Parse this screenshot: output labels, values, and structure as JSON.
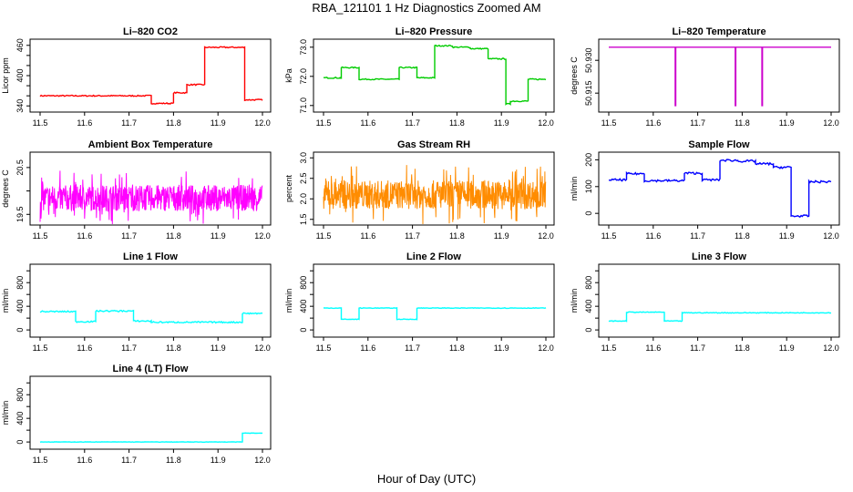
{
  "figure": {
    "title": "RBA_121101  1 Hz Diagnostics Zoomed AM",
    "xlabel": "Hour of Day (UTC)"
  },
  "chart_data": [
    {
      "type": "line",
      "title": "Li–820 CO2",
      "ylabel": "Licor ppm",
      "color": "#ff0000",
      "xlim": [
        11.5,
        12.0
      ],
      "ylim": [
        335,
        465
      ],
      "yticks": [
        340,
        360,
        380,
        400,
        420,
        440,
        460
      ],
      "ytick_labels": [
        "340",
        "",
        "",
        "400",
        "",
        "",
        "460"
      ],
      "series": [
        {
          "segments": [
            [
              11.5,
              11.75,
              360
            ],
            [
              11.75,
              11.8,
              345
            ],
            [
              11.8,
              11.83,
              366
            ],
            [
              11.83,
              11.87,
              382
            ],
            [
              11.87,
              11.96,
              456
            ],
            [
              11.96,
              12.0,
              352
            ]
          ],
          "noise": 1.2
        }
      ]
    },
    {
      "type": "line",
      "title": "Li–820 Pressure",
      "ylabel": "kPa",
      "color": "#00cc00",
      "xlim": [
        11.5,
        12.0
      ],
      "ylim": [
        70.9,
        73.15
      ],
      "yticks": [
        71.0,
        72.0,
        73.0
      ],
      "ytick_labels": [
        "71.0",
        "72.0",
        "73.0"
      ],
      "series": [
        {
          "segments": [
            [
              11.5,
              11.54,
              71.95
            ],
            [
              11.54,
              11.58,
              72.3
            ],
            [
              11.58,
              11.67,
              71.9
            ],
            [
              11.67,
              11.71,
              72.3
            ],
            [
              11.71,
              11.75,
              71.95
            ],
            [
              11.75,
              11.79,
              73.05
            ],
            [
              11.79,
              11.83,
              73.0
            ],
            [
              11.83,
              11.87,
              72.95
            ],
            [
              11.87,
              11.91,
              72.6
            ],
            [
              11.91,
              11.92,
              71.05
            ],
            [
              11.92,
              11.96,
              71.15
            ],
            [
              11.96,
              12.0,
              71.9
            ]
          ],
          "noise": 0.02
        }
      ]
    },
    {
      "type": "line",
      "title": "Li–820 Temperature",
      "ylabel": "degrees C",
      "color": "#cc00cc",
      "xlim": [
        11.5,
        12.0
      ],
      "ylim": [
        50.908,
        50.938
      ],
      "yticks": [
        50.915,
        50.93
      ],
      "ytick_labels": [
        "50.915",
        "50.930"
      ],
      "series": [
        {
          "segments": [
            [
              11.5,
              12.0,
              50.936
            ]
          ],
          "noise": 0,
          "dips": [
            [
              11.65,
              50.909
            ],
            [
              11.785,
              50.909
            ],
            [
              11.845,
              50.909
            ]
          ]
        }
      ]
    },
    {
      "type": "line",
      "title": "Ambient Box Temperature",
      "ylabel": "degrees C",
      "color": "#ff00ff",
      "xlim": [
        11.5,
        12.0
      ],
      "ylim": [
        19.35,
        20.75
      ],
      "yticks": [
        19.5,
        20.0,
        20.5
      ],
      "ytick_labels": [
        "19.5",
        "",
        "20.5"
      ],
      "series": [
        {
          "segments": [
            [
              11.5,
              12.0,
              19.85
            ]
          ],
          "noise": 0.28,
          "dense": true
        }
      ]
    },
    {
      "type": "line",
      "title": "Gas Stream RH",
      "ylabel": "percent",
      "color": "#ff8c00",
      "xlim": [
        11.5,
        12.0
      ],
      "ylim": [
        1.45,
        3.05
      ],
      "yticks": [
        1.5,
        2.0,
        2.5,
        3.0
      ],
      "ytick_labels": [
        "1.5",
        "2.0",
        "2.5",
        "3.0"
      ],
      "series": [
        {
          "segments": [
            [
              11.5,
              12.0,
              2.1
            ]
          ],
          "noise": 0.35,
          "dense": true
        }
      ]
    },
    {
      "type": "line",
      "title": "Sample Flow",
      "ylabel": "ml/min",
      "color": "#0000ff",
      "xlim": [
        11.5,
        12.0
      ],
      "ylim": [
        -30,
        215
      ],
      "yticks": [
        0,
        100,
        200
      ],
      "ytick_labels": [
        "0",
        "100",
        "200"
      ],
      "series": [
        {
          "segments": [
            [
              11.5,
              11.54,
              125
            ],
            [
              11.54,
              11.58,
              148
            ],
            [
              11.58,
              11.67,
              122
            ],
            [
              11.67,
              11.71,
              150
            ],
            [
              11.71,
              11.75,
              125
            ],
            [
              11.75,
              11.79,
              198
            ],
            [
              11.79,
              11.83,
              195
            ],
            [
              11.83,
              11.87,
              185
            ],
            [
              11.87,
              11.91,
              172
            ],
            [
              11.91,
              11.95,
              -10
            ],
            [
              11.95,
              12.0,
              118
            ]
          ],
          "noise": 4
        }
      ]
    },
    {
      "type": "line",
      "title": "Line 1 Flow",
      "ylabel": "ml/min",
      "color": "#00ffff",
      "xlim": [
        11.5,
        12.0
      ],
      "ylim": [
        -60,
        1050
      ],
      "yticks": [
        0,
        200,
        400,
        600,
        800,
        1000
      ],
      "ytick_labels": [
        "0",
        "",
        "400",
        "",
        "800",
        ""
      ],
      "series": [
        {
          "segments": [
            [
              11.5,
              11.58,
              310
            ],
            [
              11.58,
              11.625,
              140
            ],
            [
              11.625,
              11.71,
              320
            ],
            [
              11.71,
              11.75,
              150
            ],
            [
              11.75,
              11.955,
              130
            ],
            [
              11.955,
              12.0,
              280
            ]
          ],
          "noise": 12
        }
      ]
    },
    {
      "type": "line",
      "title": "Line 2 Flow",
      "ylabel": "ml/min",
      "color": "#00ffff",
      "xlim": [
        11.5,
        12.0
      ],
      "ylim": [
        -60,
        1050
      ],
      "yticks": [
        0,
        200,
        400,
        600,
        800,
        1000
      ],
      "ytick_labels": [
        "0",
        "",
        "400",
        "",
        "800",
        ""
      ],
      "series": [
        {
          "segments": [
            [
              11.5,
              11.54,
              370
            ],
            [
              11.54,
              11.58,
              180
            ],
            [
              11.58,
              11.665,
              370
            ],
            [
              11.665,
              11.71,
              180
            ],
            [
              11.71,
              12.0,
              370
            ]
          ],
          "noise": 5
        }
      ]
    },
    {
      "type": "line",
      "title": "Line 3 Flow",
      "ylabel": "ml/min",
      "color": "#00ffff",
      "xlim": [
        11.5,
        12.0
      ],
      "ylim": [
        -60,
        1050
      ],
      "yticks": [
        0,
        200,
        400,
        600,
        800,
        1000
      ],
      "ytick_labels": [
        "0",
        "",
        "400",
        "",
        "800",
        ""
      ],
      "series": [
        {
          "segments": [
            [
              11.5,
              11.54,
              150
            ],
            [
              11.54,
              11.625,
              300
            ],
            [
              11.625,
              11.665,
              150
            ],
            [
              11.665,
              12.0,
              290
            ]
          ],
          "noise": 6
        }
      ]
    },
    {
      "type": "line",
      "title": "Line 4 (LT) Flow",
      "ylabel": "ml/min",
      "color": "#00ffff",
      "xlim": [
        11.5,
        12.0
      ],
      "ylim": [
        -60,
        1050
      ],
      "yticks": [
        0,
        200,
        400,
        600,
        800,
        1000
      ],
      "ytick_labels": [
        "0",
        "",
        "400",
        "",
        "800",
        ""
      ],
      "series": [
        {
          "segments": [
            [
              11.5,
              11.955,
              0
            ],
            [
              11.955,
              12.0,
              150
            ]
          ],
          "noise": 3
        }
      ]
    }
  ],
  "shared_x": {
    "ticks": [
      11.5,
      11.6,
      11.7,
      11.8,
      11.9,
      12.0
    ],
    "tick_labels": [
      "11.5",
      "11.6",
      "11.7",
      "11.8",
      "11.9",
      "12.0"
    ]
  }
}
